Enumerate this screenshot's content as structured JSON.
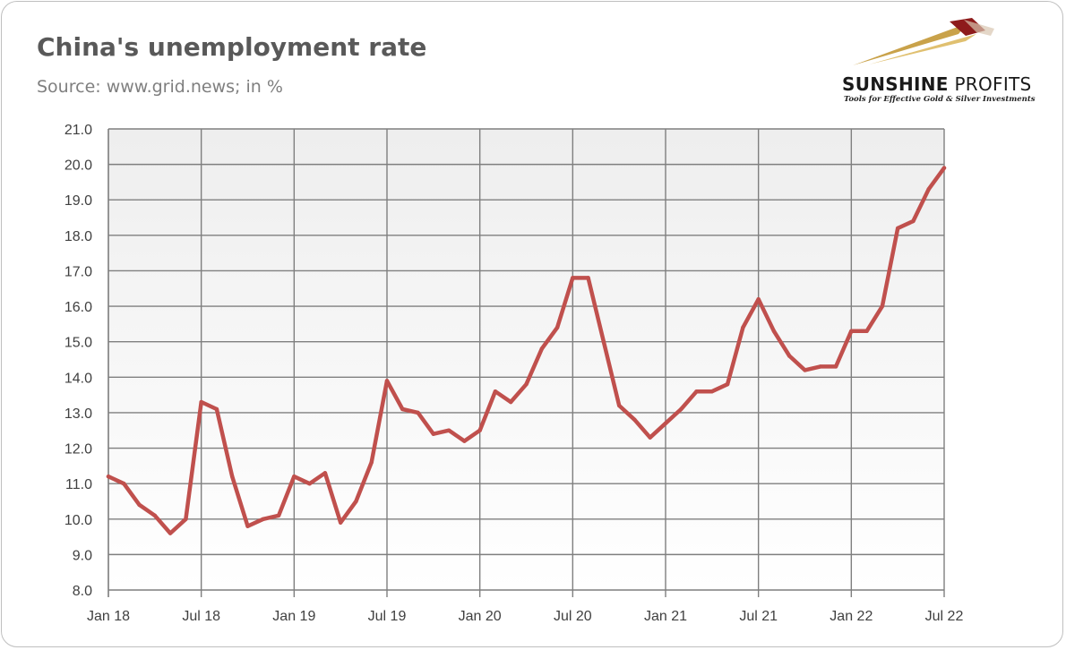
{
  "header": {
    "title": "China's unemployment rate",
    "subtitle": "Source: www.grid.news; in %"
  },
  "logo": {
    "name_bold": "SUNSHINE",
    "name_light": " PROFITS",
    "tagline": "Tools for Effective Gold & Silver Investments"
  },
  "colors": {
    "line": "#c0504d",
    "grid": "#7f7f7f",
    "plot_top": "#eeeeee",
    "plot_bottom": "#ffffff"
  },
  "chart_data": {
    "type": "line",
    "title": "China's unemployment rate",
    "subtitle": "Source: www.grid.news; in %",
    "ylim": [
      8.0,
      21.0
    ],
    "y_ticks": [
      "8.0",
      "9.0",
      "10.0",
      "11.0",
      "12.0",
      "13.0",
      "14.0",
      "15.0",
      "16.0",
      "17.0",
      "18.0",
      "19.0",
      "20.0",
      "21.0"
    ],
    "x_ticks": [
      "Jan 18",
      "Jul 18",
      "Jan 19",
      "Jul 19",
      "Jan 20",
      "Jul 20",
      "Jan 21",
      "Jul 21",
      "Jan 22",
      "Jul 22"
    ],
    "x_start": "2018-01",
    "x_end": "2022-07",
    "grid": true,
    "legend": "none",
    "series": [
      {
        "values": [
          11.2,
          11.0,
          10.4,
          10.1,
          9.6,
          10.0,
          13.3,
          13.1,
          11.2,
          9.8,
          10.0,
          10.1,
          11.2,
          11.0,
          11.3,
          9.9,
          10.5,
          11.6,
          13.9,
          13.1,
          13.0,
          12.4,
          12.5,
          12.2,
          12.5,
          13.6,
          13.3,
          13.8,
          14.8,
          15.4,
          16.8,
          16.8,
          15.0,
          13.2,
          12.8,
          12.3,
          12.7,
          13.1,
          13.6,
          13.6,
          13.8,
          15.4,
          16.2,
          15.3,
          14.6,
          14.2,
          14.3,
          14.3,
          15.3,
          15.3,
          16.0,
          18.2,
          18.4,
          19.3,
          19.9
        ]
      }
    ]
  }
}
